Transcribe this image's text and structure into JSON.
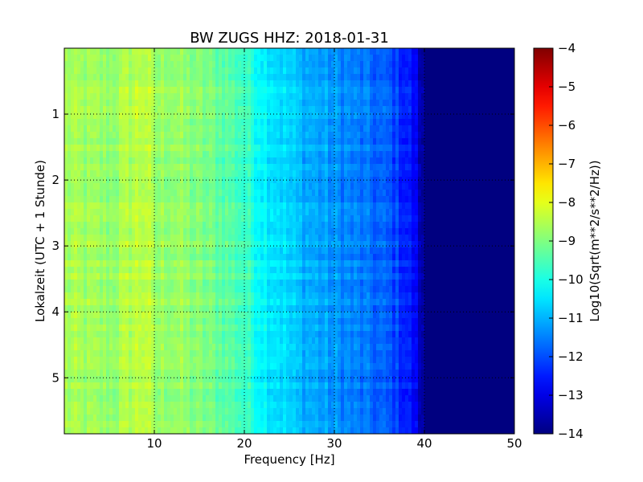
{
  "chart_data": {
    "type": "heatmap",
    "title": "BW ZUGS HHZ: 2018-01-31",
    "xlabel": "Frequency [Hz]",
    "ylabel": "Lokalzeit (UTC + 1 Stunde)",
    "xlim": [
      0,
      50
    ],
    "ylim": [
      0,
      5.85
    ],
    "y_inverted": true,
    "xticks": [
      10,
      20,
      30,
      40,
      50
    ],
    "xtick_labels": [
      "10",
      "20",
      "30",
      "40",
      "50"
    ],
    "yticks": [
      1,
      2,
      3,
      4,
      5
    ],
    "ytick_labels": [
      "1",
      "2",
      "3",
      "4",
      "5"
    ],
    "grid": true,
    "colormap": "jet",
    "colorbar": {
      "label": "Log10(Sqrt(m**2/s**2/Hz))",
      "range": [
        -14,
        -4
      ],
      "ticks": [
        -4,
        -5,
        -6,
        -7,
        -8,
        -9,
        -10,
        -11,
        -12,
        -13,
        -14
      ],
      "tick_labels": [
        "−4",
        "−5",
        "−6",
        "−7",
        "−8",
        "−9",
        "−10",
        "−11",
        "−12",
        "−13",
        "−14"
      ]
    },
    "spectral_profile": {
      "frequency_hz": [
        0,
        2,
        5,
        8,
        9,
        10,
        12,
        15,
        18,
        20,
        22,
        24,
        26,
        28,
        30,
        32,
        34,
        36,
        38,
        39,
        40,
        41,
        45,
        50
      ],
      "level": [
        -8.6,
        -8.7,
        -8.8,
        -8.4,
        -8.3,
        -8.8,
        -8.7,
        -9.0,
        -9.3,
        -9.6,
        -10.2,
        -10.5,
        -10.9,
        -11.1,
        -11.3,
        -11.5,
        -11.7,
        -11.9,
        -12.4,
        -12.8,
        -14.0,
        -14.0,
        -14.0,
        -14.0
      ]
    }
  }
}
